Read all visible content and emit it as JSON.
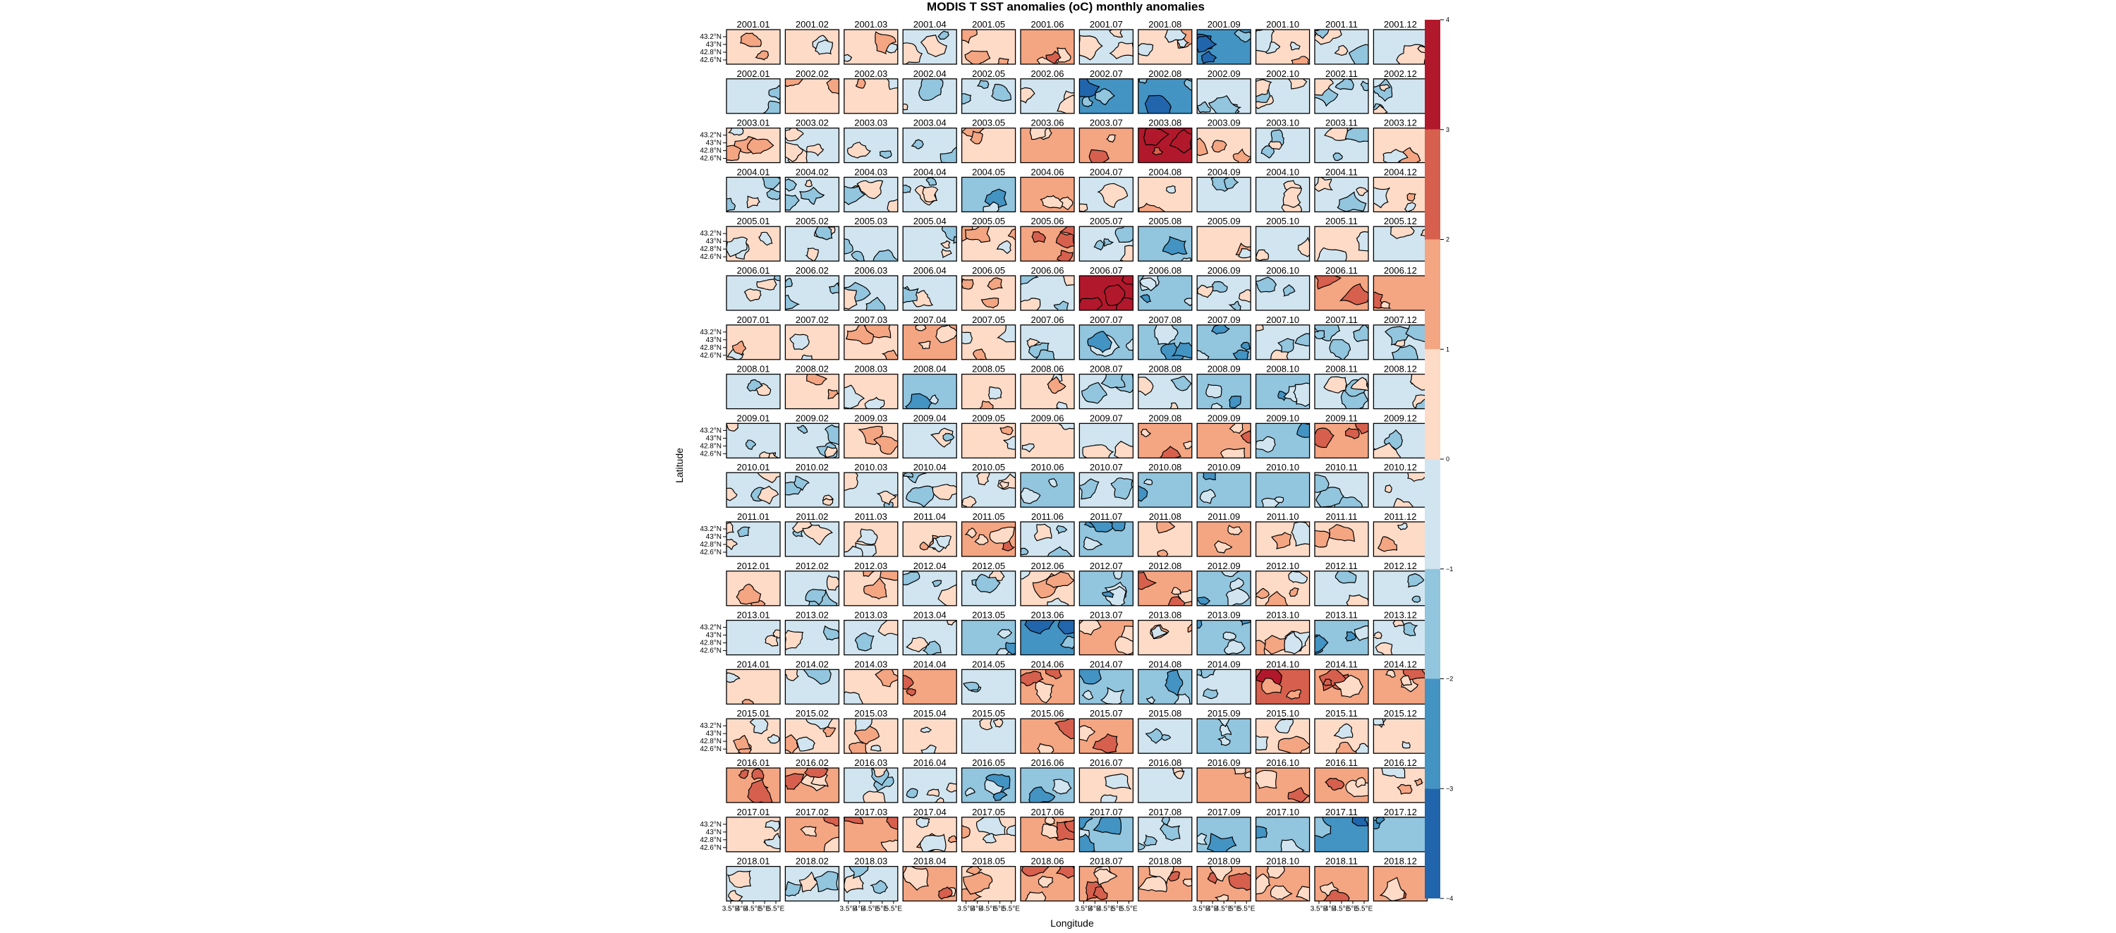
{
  "chart_data": {
    "type": "heatmap",
    "title": "MODIS T SST anomalies (oC) monthly anomalies",
    "xlabel": "Longitude",
    "ylabel": "Latitude",
    "y_ticks": [
      "43.2°N",
      "43°N",
      "42.8°N",
      "42.6°N"
    ],
    "x_ticks": [
      "3.5°E",
      "4°E",
      "4.5°E",
      "5°E",
      "5.5°E"
    ],
    "colorbar": {
      "ticks": [
        "4",
        "3",
        "2",
        "1",
        "0",
        "−1",
        "−2",
        "−3",
        "−4"
      ],
      "levels": [
        {
          "range": [
            3,
            4
          ],
          "color": "#b2182b"
        },
        {
          "range": [
            2,
            3
          ],
          "color": "#d6604d"
        },
        {
          "range": [
            1,
            2
          ],
          "color": "#f4a582"
        },
        {
          "range": [
            0,
            1
          ],
          "color": "#fddbc7"
        },
        {
          "range": [
            -1,
            0
          ],
          "color": "#d1e5f0"
        },
        {
          "range": [
            -2,
            -1
          ],
          "color": "#92c5de"
        },
        {
          "range": [
            -3,
            -2
          ],
          "color": "#4393c3"
        },
        {
          "range": [
            -4,
            -3
          ],
          "color": "#2166ac"
        }
      ]
    },
    "panels": [
      {
        "label": "2001.01",
        "value": 0.5
      },
      {
        "label": "2001.02",
        "value": 0.4
      },
      {
        "label": "2001.03",
        "value": 0.5
      },
      {
        "label": "2001.04",
        "value": -0.4
      },
      {
        "label": "2001.05",
        "value": 0.8
      },
      {
        "label": "2001.06",
        "value": 1.1
      },
      {
        "label": "2001.07",
        "value": -0.5
      },
      {
        "label": "2001.08",
        "value": 0.4
      },
      {
        "label": "2001.09",
        "value": -2.2
      },
      {
        "label": "2001.10",
        "value": 0.5
      },
      {
        "label": "2001.11",
        "value": -0.5
      },
      {
        "label": "2001.12",
        "value": -0.4
      },
      {
        "label": "2002.01",
        "value": -0.6
      },
      {
        "label": "2002.02",
        "value": 0.4
      },
      {
        "label": "2002.03",
        "value": 0.4
      },
      {
        "label": "2002.04",
        "value": -0.4
      },
      {
        "label": "2002.05",
        "value": -0.4
      },
      {
        "label": "2002.06",
        "value": -0.5
      },
      {
        "label": "2002.07",
        "value": -2.1
      },
      {
        "label": "2002.08",
        "value": -2.3
      },
      {
        "label": "2002.09",
        "value": -0.6
      },
      {
        "label": "2002.10",
        "value": -0.4
      },
      {
        "label": "2002.11",
        "value": -0.5
      },
      {
        "label": "2002.12",
        "value": -0.4
      },
      {
        "label": "2003.01",
        "value": 0.4
      },
      {
        "label": "2003.02",
        "value": -0.4
      },
      {
        "label": "2003.03",
        "value": -0.4
      },
      {
        "label": "2003.04",
        "value": -0.5
      },
      {
        "label": "2003.05",
        "value": 0.5
      },
      {
        "label": "2003.06",
        "value": 1.6
      },
      {
        "label": "2003.07",
        "value": 1.6
      },
      {
        "label": "2003.08",
        "value": 3.4
      },
      {
        "label": "2003.09",
        "value": 0.5
      },
      {
        "label": "2003.10",
        "value": -0.6
      },
      {
        "label": "2003.11",
        "value": -0.6
      },
      {
        "label": "2003.12",
        "value": 0.4
      },
      {
        "label": "2004.01",
        "value": -0.5
      },
      {
        "label": "2004.02",
        "value": -0.4
      },
      {
        "label": "2004.03",
        "value": -0.6
      },
      {
        "label": "2004.04",
        "value": -0.5
      },
      {
        "label": "2004.05",
        "value": -1.2
      },
      {
        "label": "2004.06",
        "value": 1.4
      },
      {
        "label": "2004.07",
        "value": -0.6
      },
      {
        "label": "2004.08",
        "value": 0.5
      },
      {
        "label": "2004.09",
        "value": -0.4
      },
      {
        "label": "2004.10",
        "value": -0.5
      },
      {
        "label": "2004.11",
        "value": -0.6
      },
      {
        "label": "2004.12",
        "value": 0.4
      },
      {
        "label": "2005.01",
        "value": 0.4
      },
      {
        "label": "2005.02",
        "value": -0.4
      },
      {
        "label": "2005.03",
        "value": -0.5
      },
      {
        "label": "2005.04",
        "value": -0.5
      },
      {
        "label": "2005.05",
        "value": 0.4
      },
      {
        "label": "2005.06",
        "value": 1.2
      },
      {
        "label": "2005.07",
        "value": -0.5
      },
      {
        "label": "2005.08",
        "value": -1.3
      },
      {
        "label": "2005.09",
        "value": 0.5
      },
      {
        "label": "2005.10",
        "value": -0.6
      },
      {
        "label": "2005.11",
        "value": 0.8
      },
      {
        "label": "2005.12",
        "value": -0.4
      },
      {
        "label": "2006.01",
        "value": -0.5
      },
      {
        "label": "2006.02",
        "value": -0.4
      },
      {
        "label": "2006.03",
        "value": -0.4
      },
      {
        "label": "2006.04",
        "value": -0.5
      },
      {
        "label": "2006.05",
        "value": 0.5
      },
      {
        "label": "2006.06",
        "value": -0.5
      },
      {
        "label": "2006.07",
        "value": 3.4
      },
      {
        "label": "2006.08",
        "value": -1.5
      },
      {
        "label": "2006.09",
        "value": -0.5
      },
      {
        "label": "2006.10",
        "value": -0.4
      },
      {
        "label": "2006.11",
        "value": 1.3
      },
      {
        "label": "2006.12",
        "value": 1.1
      },
      {
        "label": "2007.01",
        "value": 0.6
      },
      {
        "label": "2007.02",
        "value": 0.4
      },
      {
        "label": "2007.03",
        "value": 0.4
      },
      {
        "label": "2007.04",
        "value": 1.4
      },
      {
        "label": "2007.05",
        "value": 0.4
      },
      {
        "label": "2007.06",
        "value": -0.4
      },
      {
        "label": "2007.07",
        "value": -1.3
      },
      {
        "label": "2007.08",
        "value": -1.2
      },
      {
        "label": "2007.09",
        "value": -1.2
      },
      {
        "label": "2007.10",
        "value": -0.5
      },
      {
        "label": "2007.11",
        "value": -0.4
      },
      {
        "label": "2007.12",
        "value": -0.6
      },
      {
        "label": "2008.01",
        "value": -0.4
      },
      {
        "label": "2008.02",
        "value": 0.4
      },
      {
        "label": "2008.03",
        "value": 0.4
      },
      {
        "label": "2008.04",
        "value": -1.1
      },
      {
        "label": "2008.05",
        "value": 0.4
      },
      {
        "label": "2008.06",
        "value": 0.4
      },
      {
        "label": "2008.07",
        "value": -0.4
      },
      {
        "label": "2008.08",
        "value": -0.4
      },
      {
        "label": "2008.09",
        "value": -1.1
      },
      {
        "label": "2008.10",
        "value": -1.1
      },
      {
        "label": "2008.11",
        "value": -0.5
      },
      {
        "label": "2008.12",
        "value": -0.4
      },
      {
        "label": "2009.01",
        "value": -0.5
      },
      {
        "label": "2009.02",
        "value": -0.4
      },
      {
        "label": "2009.03",
        "value": 0.4
      },
      {
        "label": "2009.04",
        "value": -0.6
      },
      {
        "label": "2009.05",
        "value": 0.5
      },
      {
        "label": "2009.06",
        "value": 0.4
      },
      {
        "label": "2009.07",
        "value": -0.4
      },
      {
        "label": "2009.08",
        "value": 1.3
      },
      {
        "label": "2009.09",
        "value": 1.3
      },
      {
        "label": "2009.10",
        "value": -1.2
      },
      {
        "label": "2009.11",
        "value": 1.1
      },
      {
        "label": "2009.12",
        "value": -0.4
      },
      {
        "label": "2010.01",
        "value": -0.5
      },
      {
        "label": "2010.02",
        "value": -0.4
      },
      {
        "label": "2010.03",
        "value": -0.4
      },
      {
        "label": "2010.04",
        "value": -0.4
      },
      {
        "label": "2010.05",
        "value": -0.5
      },
      {
        "label": "2010.06",
        "value": -1.2
      },
      {
        "label": "2010.07",
        "value": -0.5
      },
      {
        "label": "2010.08",
        "value": -1.2
      },
      {
        "label": "2010.09",
        "value": -1.2
      },
      {
        "label": "2010.10",
        "value": -1.6
      },
      {
        "label": "2010.11",
        "value": -0.6
      },
      {
        "label": "2010.12",
        "value": -0.5
      },
      {
        "label": "2011.01",
        "value": -0.4
      },
      {
        "label": "2011.02",
        "value": -0.4
      },
      {
        "label": "2011.03",
        "value": 0.5
      },
      {
        "label": "2011.04",
        "value": 0.4
      },
      {
        "label": "2011.05",
        "value": 1.3
      },
      {
        "label": "2011.06",
        "value": -0.5
      },
      {
        "label": "2011.07",
        "value": -1.4
      },
      {
        "label": "2011.08",
        "value": 0.4
      },
      {
        "label": "2011.09",
        "value": 1.3
      },
      {
        "label": "2011.10",
        "value": 0.5
      },
      {
        "label": "2011.11",
        "value": 0.8
      },
      {
        "label": "2011.12",
        "value": 0.5
      },
      {
        "label": "2012.01",
        "value": 0.4
      },
      {
        "label": "2012.02",
        "value": -0.4
      },
      {
        "label": "2012.03",
        "value": 0.4
      },
      {
        "label": "2012.04",
        "value": -0.4
      },
      {
        "label": "2012.05",
        "value": -0.4
      },
      {
        "label": "2012.06",
        "value": 0.4
      },
      {
        "label": "2012.07",
        "value": -1.2
      },
      {
        "label": "2012.08",
        "value": 1.2
      },
      {
        "label": "2012.09",
        "value": -1.1
      },
      {
        "label": "2012.10",
        "value": 0.5
      },
      {
        "label": "2012.11",
        "value": -0.5
      },
      {
        "label": "2012.12",
        "value": -0.5
      },
      {
        "label": "2013.01",
        "value": -0.5
      },
      {
        "label": "2013.02",
        "value": -0.4
      },
      {
        "label": "2013.03",
        "value": -0.4
      },
      {
        "label": "2013.04",
        "value": -0.5
      },
      {
        "label": "2013.05",
        "value": -1.2
      },
      {
        "label": "2013.06",
        "value": -2.2
      },
      {
        "label": "2013.07",
        "value": 1.4
      },
      {
        "label": "2013.08",
        "value": 0.4
      },
      {
        "label": "2013.09",
        "value": -1.2
      },
      {
        "label": "2013.10",
        "value": 0.4
      },
      {
        "label": "2013.11",
        "value": -1.2
      },
      {
        "label": "2013.12",
        "value": -0.5
      },
      {
        "label": "2014.01",
        "value": 0.4
      },
      {
        "label": "2014.02",
        "value": -0.4
      },
      {
        "label": "2014.03",
        "value": 0.4
      },
      {
        "label": "2014.04",
        "value": 1.1
      },
      {
        "label": "2014.05",
        "value": -0.4
      },
      {
        "label": "2014.06",
        "value": 1.2
      },
      {
        "label": "2014.07",
        "value": -1.3
      },
      {
        "label": "2014.08",
        "value": -1.2
      },
      {
        "label": "2014.09",
        "value": -0.5
      },
      {
        "label": "2014.10",
        "value": 2.3
      },
      {
        "label": "2014.11",
        "value": 1.8
      },
      {
        "label": "2014.12",
        "value": 1.4
      },
      {
        "label": "2015.01",
        "value": 0.4
      },
      {
        "label": "2015.02",
        "value": 0.4
      },
      {
        "label": "2015.03",
        "value": 0.4
      },
      {
        "label": "2015.04",
        "value": 0.4
      },
      {
        "label": "2015.05",
        "value": -0.4
      },
      {
        "label": "2015.06",
        "value": 1.2
      },
      {
        "label": "2015.07",
        "value": 1.4
      },
      {
        "label": "2015.08",
        "value": -0.4
      },
      {
        "label": "2015.09",
        "value": -1.2
      },
      {
        "label": "2015.10",
        "value": 0.4
      },
      {
        "label": "2015.11",
        "value": 0.4
      },
      {
        "label": "2015.12",
        "value": 0.4
      },
      {
        "label": "2016.01",
        "value": 1.1
      },
      {
        "label": "2016.02",
        "value": 1.2
      },
      {
        "label": "2016.03",
        "value": -0.4
      },
      {
        "label": "2016.04",
        "value": -0.4
      },
      {
        "label": "2016.05",
        "value": -1.1
      },
      {
        "label": "2016.06",
        "value": -1.2
      },
      {
        "label": "2016.07",
        "value": 0.4
      },
      {
        "label": "2016.08",
        "value": -0.5
      },
      {
        "label": "2016.09",
        "value": 1.4
      },
      {
        "label": "2016.10",
        "value": 1.1
      },
      {
        "label": "2016.11",
        "value": 1.3
      },
      {
        "label": "2016.12",
        "value": 0.5
      },
      {
        "label": "2017.01",
        "value": 0.4
      },
      {
        "label": "2017.02",
        "value": 1.1
      },
      {
        "label": "2017.03",
        "value": 1.1
      },
      {
        "label": "2017.04",
        "value": 0.4
      },
      {
        "label": "2017.05",
        "value": 0.5
      },
      {
        "label": "2017.06",
        "value": 1.8
      },
      {
        "label": "2017.07",
        "value": -1.2
      },
      {
        "label": "2017.08",
        "value": -0.5
      },
      {
        "label": "2017.09",
        "value": -1.4
      },
      {
        "label": "2017.10",
        "value": -1.1
      },
      {
        "label": "2017.11",
        "value": -2.1
      },
      {
        "label": "2017.12",
        "value": -1.1
      },
      {
        "label": "2018.01",
        "value": -0.5
      },
      {
        "label": "2018.02",
        "value": -0.4
      },
      {
        "label": "2018.03",
        "value": -0.5
      },
      {
        "label": "2018.04",
        "value": 1.3
      },
      {
        "label": "2018.05",
        "value": 0.4
      },
      {
        "label": "2018.06",
        "value": 1.8
      },
      {
        "label": "2018.07",
        "value": 1.3
      },
      {
        "label": "2018.08",
        "value": 1.4
      },
      {
        "label": "2018.09",
        "value": 1.4
      },
      {
        "label": "2018.10",
        "value": 1.2
      },
      {
        "label": "2018.11",
        "value": 1.4
      },
      {
        "label": "2018.12",
        "value": 1.2
      }
    ]
  }
}
